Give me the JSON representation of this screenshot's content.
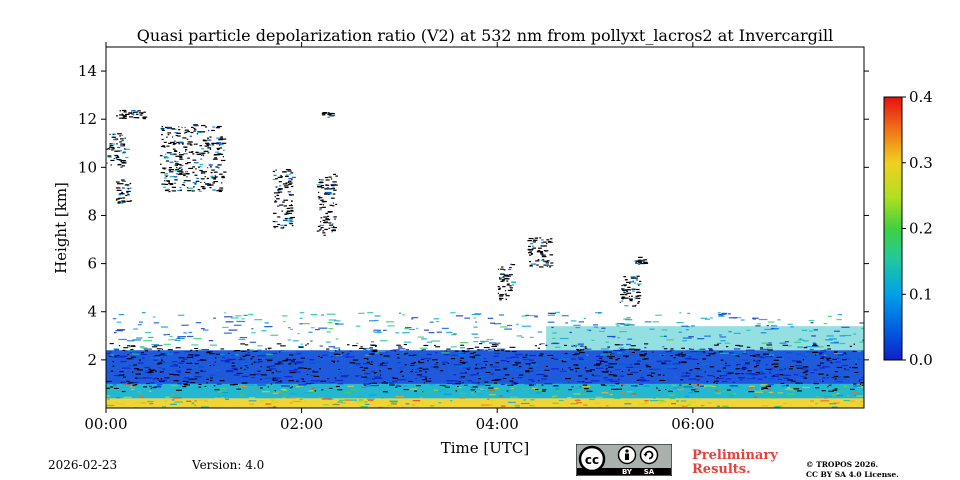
{
  "chart_data": {
    "type": "heatmap",
    "title": "Quasi particle depolarization ratio (V2) at 532 nm from pollyxt_lacros2 at Invercargill",
    "xlabel": "Time [UTC]",
    "ylabel": "Height [km]",
    "x_range_hours": [
      0,
      7.75
    ],
    "y_range_km": [
      0,
      15
    ],
    "x_ticks": [
      {
        "value": 0,
        "label": "00:00"
      },
      {
        "value": 2,
        "label": "02:00"
      },
      {
        "value": 4,
        "label": "04:00"
      },
      {
        "value": 6,
        "label": "06:00"
      }
    ],
    "y_ticks": [
      {
        "value": 2,
        "label": "2"
      },
      {
        "value": 4,
        "label": "4"
      },
      {
        "value": 6,
        "label": "6"
      },
      {
        "value": 8,
        "label": "8"
      },
      {
        "value": 10,
        "label": "10"
      },
      {
        "value": 12,
        "label": "12"
      },
      {
        "value": 14,
        "label": "14"
      }
    ],
    "colorbar": {
      "range": [
        0.0,
        0.4
      ],
      "ticks": [
        {
          "value": 0.0,
          "label": "0.0"
        },
        {
          "value": 0.1,
          "label": "0.1"
        },
        {
          "value": 0.2,
          "label": "0.2"
        },
        {
          "value": 0.3,
          "label": "0.3"
        },
        {
          "value": 0.4,
          "label": "0.4"
        }
      ],
      "colormap": "jet"
    },
    "layers": [
      {
        "name": "near-surface high depolarization",
        "t0": 0,
        "t1": 7.75,
        "z0": 0,
        "z1": 0.4,
        "value": 0.3
      },
      {
        "name": "lower boundary layer",
        "t0": 0,
        "t1": 7.75,
        "z0": 0.4,
        "z1": 1.0,
        "value": 0.12
      },
      {
        "name": "aerosol layer",
        "t0": 0,
        "t1": 7.75,
        "z0": 1.0,
        "z1": 2.4,
        "value": 0.03
      },
      {
        "name": "late-period elevated layer",
        "t0": 4.5,
        "t1": 7.75,
        "z0": 2.4,
        "z1": 3.4,
        "value": 0.13
      }
    ],
    "cloud_patches": [
      {
        "t0": 0.0,
        "t1": 0.2,
        "z0": 10.0,
        "z1": 11.5
      },
      {
        "t0": 0.1,
        "t1": 0.25,
        "z0": 8.5,
        "z1": 9.5
      },
      {
        "t0": 0.1,
        "t1": 0.4,
        "z0": 12.0,
        "z1": 12.4
      },
      {
        "t0": 0.55,
        "t1": 1.2,
        "z0": 9.0,
        "z1": 11.8
      },
      {
        "t0": 1.7,
        "t1": 1.9,
        "z0": 7.5,
        "z1": 10.0
      },
      {
        "t0": 2.15,
        "t1": 2.35,
        "z0": 7.2,
        "z1": 9.8
      },
      {
        "t0": 2.2,
        "t1": 2.3,
        "z0": 12.1,
        "z1": 12.3
      },
      {
        "t0": 4.0,
        "t1": 4.15,
        "z0": 4.5,
        "z1": 6.0
      },
      {
        "t0": 4.3,
        "t1": 4.55,
        "z0": 5.8,
        "z1": 7.1
      },
      {
        "t0": 5.25,
        "t1": 5.45,
        "z0": 4.2,
        "z1": 5.5
      },
      {
        "t0": 5.4,
        "t1": 5.5,
        "z0": 6.0,
        "z1": 6.3
      }
    ],
    "date": "2026-02-23",
    "version": "Version: 4.0",
    "license_badge": {
      "cc": "cc",
      "by": "BY",
      "sa": "SA"
    },
    "notice": {
      "line1": "Preliminary",
      "line2": "Results."
    },
    "copyright": {
      "line1": "© TROPOS 2026.",
      "line2": "CC BY SA 4.0 License."
    }
  },
  "colors": {
    "notice": "#e8403a",
    "axis": "#000000",
    "background": "#ffffff"
  }
}
